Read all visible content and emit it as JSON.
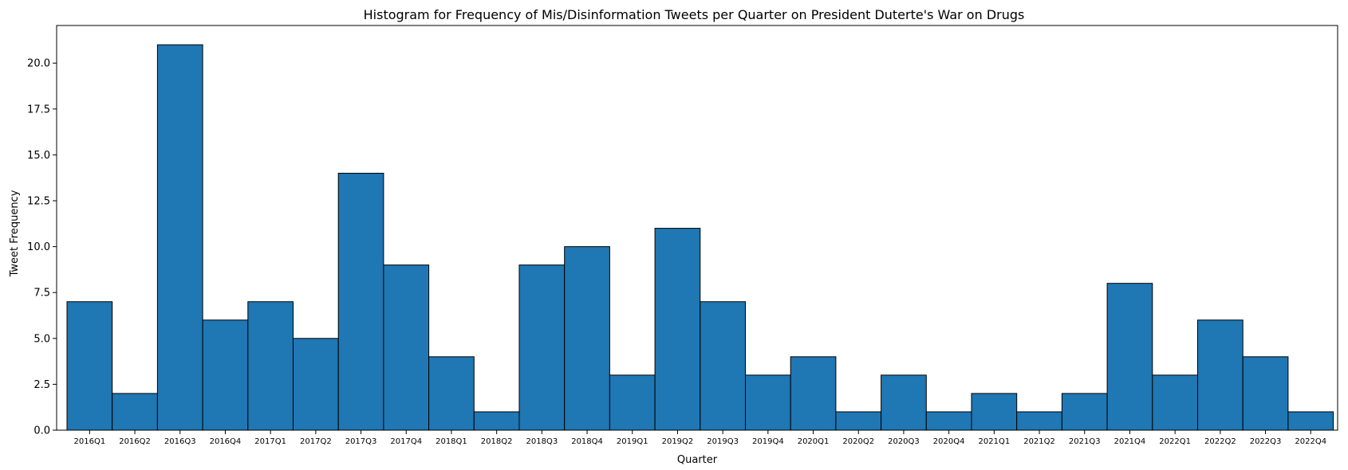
{
  "chart_data": {
    "type": "bar",
    "title": "Histogram for Frequency of Mis/Disinformation Tweets per Quarter on President Duterte's War on Drugs",
    "xlabel": "Quarter",
    "ylabel": "Tweet Frequency",
    "categories": [
      "2016Q1",
      "2016Q2",
      "2016Q3",
      "2016Q4",
      "2017Q1",
      "2017Q2",
      "2017Q3",
      "2017Q4",
      "2018Q1",
      "2018Q2",
      "2018Q3",
      "2018Q4",
      "2019Q1",
      "2019Q2",
      "2019Q3",
      "2019Q4",
      "2020Q1",
      "2020Q2",
      "2020Q3",
      "2020Q4",
      "2021Q1",
      "2021Q2",
      "2021Q3",
      "2021Q4",
      "2022Q1",
      "2022Q2",
      "2022Q3",
      "2022Q4"
    ],
    "values": [
      7,
      2,
      21,
      6,
      7,
      5,
      14,
      9,
      4,
      1,
      9,
      10,
      3,
      11,
      7,
      3,
      4,
      1,
      3,
      1,
      2,
      1,
      2,
      8,
      3,
      6,
      4,
      1
    ],
    "ylim": [
      0,
      22.05
    ],
    "yticks": [
      "0.0",
      "2.5",
      "5.0",
      "7.5",
      "10.0",
      "12.5",
      "15.0",
      "17.5",
      "20.0"
    ],
    "grid": false,
    "colors": {
      "bar": "#1f77b4",
      "edge": "#000000"
    }
  }
}
